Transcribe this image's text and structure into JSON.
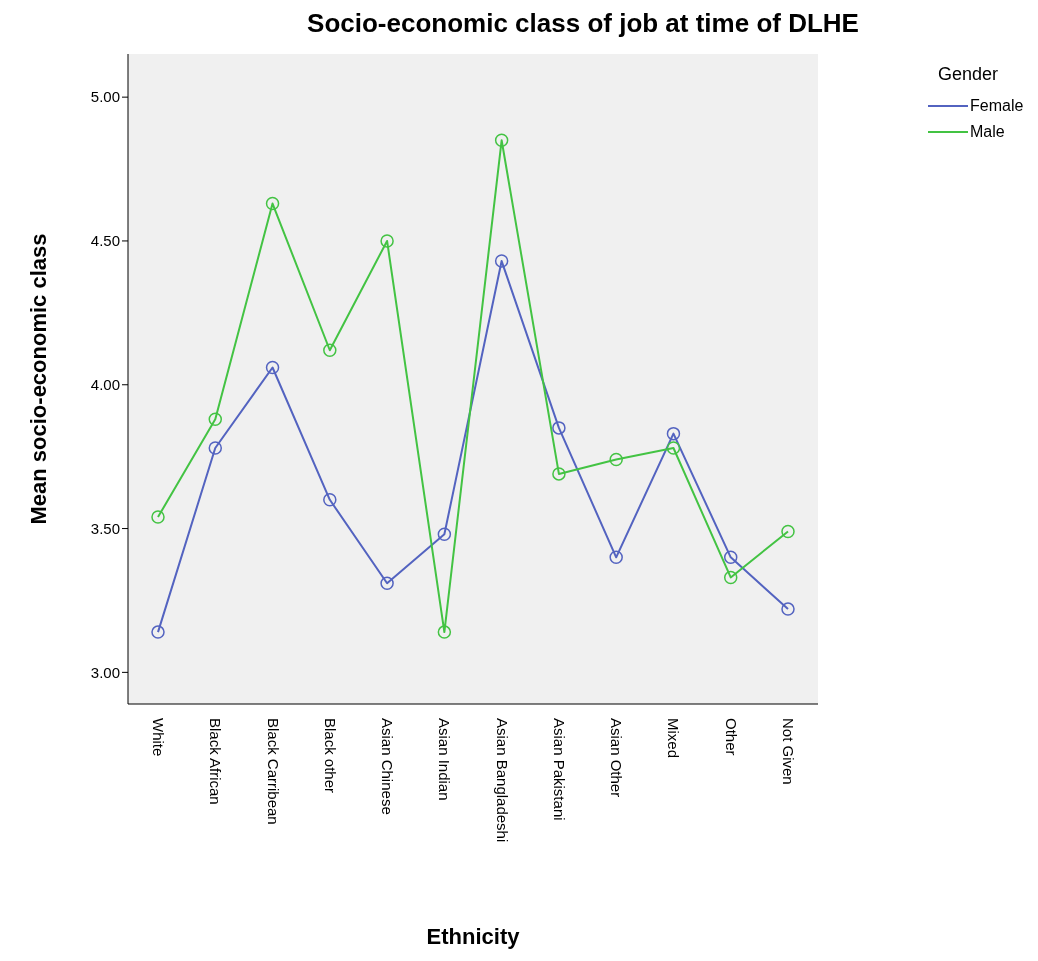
{
  "chart_data": {
    "type": "line",
    "title": "Socio-economic class of job at time of DLHE",
    "xlabel": "Ethnicity",
    "ylabel": "Mean socio-economic class",
    "legend_title": "Gender",
    "categories": [
      "White",
      "Black African",
      "Black Carribean",
      "Black other",
      "Asian Chinese",
      "Asian Indian",
      "Asian Bangladeshi",
      "Asian Pakistani",
      "Asian Other",
      "Mixed",
      "Other",
      "Not Given"
    ],
    "series": [
      {
        "name": "Female",
        "color": "#5363c0",
        "values": [
          3.14,
          3.78,
          4.06,
          3.6,
          3.31,
          3.48,
          4.43,
          3.85,
          3.4,
          3.83,
          3.4,
          3.22
        ]
      },
      {
        "name": "Male",
        "color": "#43c343",
        "values": [
          3.54,
          3.88,
          4.63,
          4.12,
          4.5,
          3.14,
          4.85,
          3.69,
          3.74,
          3.78,
          3.33,
          3.49
        ]
      }
    ],
    "ylim": [
      2.89,
      5.15
    ],
    "yticks": [
      {
        "value": 3,
        "label": "3.00"
      },
      {
        "value": 3.5,
        "label": "3.50"
      },
      {
        "value": 4,
        "label": "4.00"
      },
      {
        "value": 4.5,
        "label": "4.50"
      },
      {
        "value": 5,
        "label": "5.00"
      }
    ],
    "grid": false,
    "legend": "top right",
    "marker": "circle",
    "line_style": "solid"
  }
}
